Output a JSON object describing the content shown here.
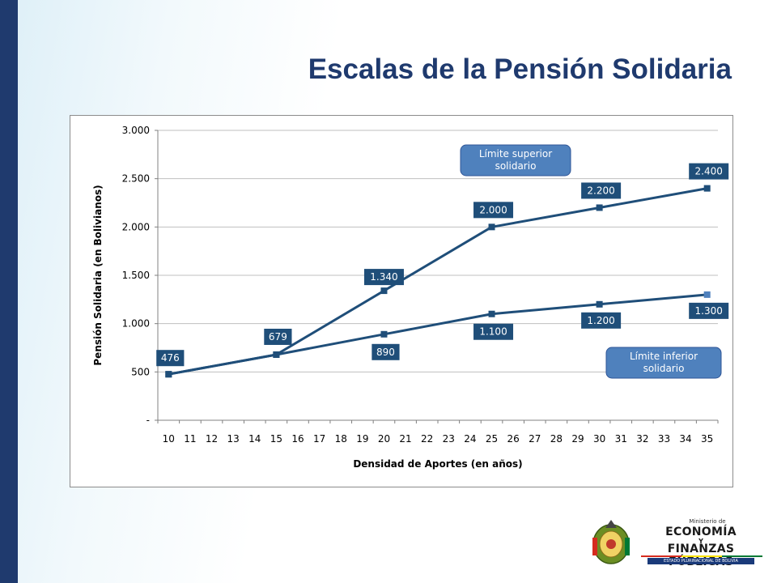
{
  "slide": {
    "title": "Escalas de la Pensión Solidaria"
  },
  "chart_data": {
    "type": "line",
    "title": "",
    "xlabel": "Densidad de Aportes (en años)",
    "ylabel": "Pensión Solidaria  (en Bolivianos)",
    "x": [
      10,
      11,
      12,
      13,
      14,
      15,
      16,
      17,
      18,
      19,
      20,
      21,
      22,
      23,
      24,
      25,
      26,
      27,
      28,
      29,
      30,
      31,
      32,
      33,
      34,
      35
    ],
    "ylim": [
      0,
      3000
    ],
    "yticks": [
      0,
      500,
      1000,
      1500,
      2000,
      2500,
      3000
    ],
    "ytick_labels": [
      "-",
      "500",
      "1.000",
      "1.500",
      "2.000",
      "2.500",
      "3.000"
    ],
    "grid": "horizontal",
    "series": [
      {
        "name": "Límite superior solidario",
        "points": [
          {
            "x": 10,
            "y": 476,
            "label": "476"
          },
          {
            "x": 15,
            "y": 679,
            "label": "679"
          },
          {
            "x": 20,
            "y": 1340,
            "label": "1.340"
          },
          {
            "x": 25,
            "y": 2000,
            "label": "2.000"
          },
          {
            "x": 30,
            "y": 2200,
            "label": "2.200"
          },
          {
            "x": 35,
            "y": 2400,
            "label": "2.400"
          }
        ]
      },
      {
        "name": "Límite inferior solidario",
        "points": [
          {
            "x": 10,
            "y": 476,
            "label": ""
          },
          {
            "x": 15,
            "y": 679,
            "label": ""
          },
          {
            "x": 20,
            "y": 890,
            "label": "890"
          },
          {
            "x": 25,
            "y": 1100,
            "label": "1.100"
          },
          {
            "x": 30,
            "y": 1200,
            "label": "1.200"
          },
          {
            "x": 35,
            "y": 1300,
            "label": "1.300"
          }
        ]
      }
    ],
    "callouts": [
      {
        "lines": [
          "Límite superior",
          "solidario"
        ],
        "series": "Límite superior solidario"
      },
      {
        "lines": [
          "Límite inferior",
          "solidario"
        ],
        "series": "Límite inferior solidario"
      }
    ],
    "colors": {
      "line": "#1f4e79",
      "label_box": "#1f4e79",
      "callout_fill": "#4f81bd",
      "grid": "#bfbfbf"
    }
  },
  "logo": {
    "ministry_small": "Ministerio de",
    "line1": "ECONOMÍA",
    "connector": "Y",
    "line2": "FINANZAS PÚBLICAS",
    "subtitle": "ESTADO PLURINACIONAL DE BOLIVIA"
  }
}
